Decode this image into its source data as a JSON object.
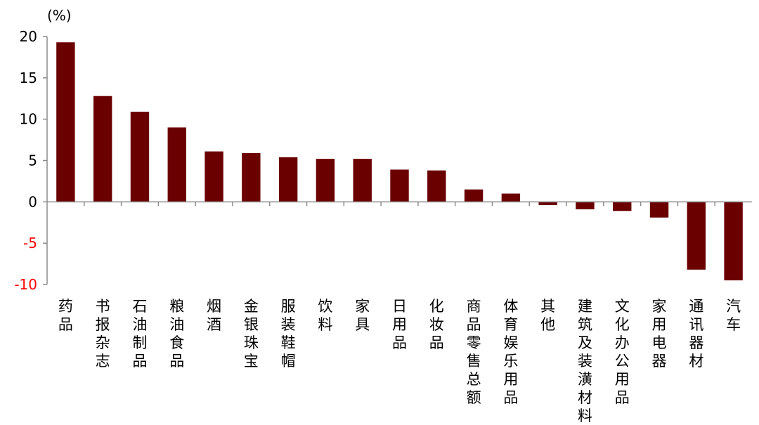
{
  "chart_data": {
    "type": "bar",
    "unit_label": "(%)",
    "categories": [
      "药品",
      "书报杂志",
      "石油制品",
      "粮油食品",
      "烟酒",
      "金银珠宝",
      "服装鞋帽",
      "饮料",
      "家具",
      "日用品",
      "化妆品",
      "商品零售总额",
      "体育娱乐用品",
      "其他",
      "建筑及装潢材料",
      "文化办公用品",
      "家用电器",
      "通讯器材",
      "汽车"
    ],
    "values": [
      19.3,
      12.8,
      10.9,
      9.0,
      6.1,
      5.9,
      5.4,
      5.2,
      5.2,
      3.9,
      3.8,
      1.5,
      1.0,
      -0.4,
      -0.9,
      -1.1,
      -1.9,
      -8.2,
      -9.5
    ],
    "ylim": [
      -10,
      20
    ],
    "yticks": [
      "20",
      "15",
      "10",
      "5",
      "0",
      "-5",
      "-10"
    ],
    "ytick_values": [
      20,
      15,
      10,
      5,
      0,
      -5,
      -10
    ],
    "bar_color": "#6b0000",
    "negative_tick_color": "#ff0000",
    "positive_tick_color": "#000000",
    "grid": false,
    "legend": "none"
  }
}
